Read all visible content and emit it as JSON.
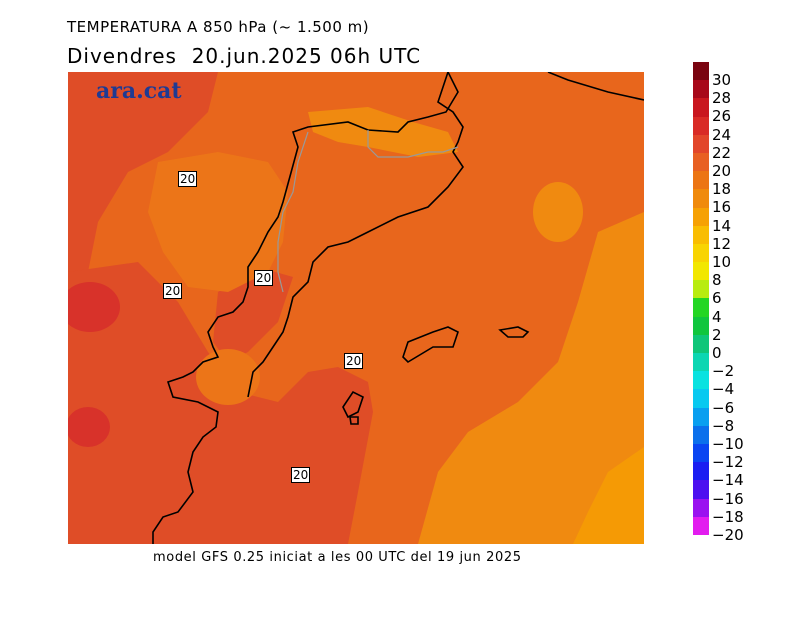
{
  "title": {
    "line1": "TEMPERATURA A 850 hPa (~ 1.500 m)",
    "line2": "Divendres  20.jun.2025 06h UTC"
  },
  "logo": "ara.cat",
  "footer": "model GFS 0.25 iniciat a les 00 UTC del 19 jun 2025",
  "contour_labels": [
    "20",
    "20",
    "20",
    "20",
    "20"
  ],
  "legend": {
    "ticks": [
      "30",
      "28",
      "26",
      "24",
      "22",
      "20",
      "18",
      "16",
      "14",
      "12",
      "10",
      "8",
      "6",
      "4",
      "2",
      "0",
      "−2",
      "−4",
      "−6",
      "−8",
      "−10",
      "−12",
      "−14",
      "−16",
      "−18",
      "−20"
    ],
    "colors": [
      "#7a0410",
      "#a8081a",
      "#c9171f",
      "#d92b26",
      "#e2462a",
      "#e86022",
      "#ec7514",
      "#f08a0c",
      "#f6a104",
      "#f9bd02",
      "#f8d402",
      "#f2e700",
      "#b8ec10",
      "#24d623",
      "#10c63e",
      "#0fc679",
      "#0cd6b2",
      "#09e2e0",
      "#08c9f0",
      "#099ff0",
      "#0b70ec",
      "#0a45f2",
      "#1b1ef2",
      "#4d10f0",
      "#9a12f0",
      "#e21cef"
    ]
  }
}
